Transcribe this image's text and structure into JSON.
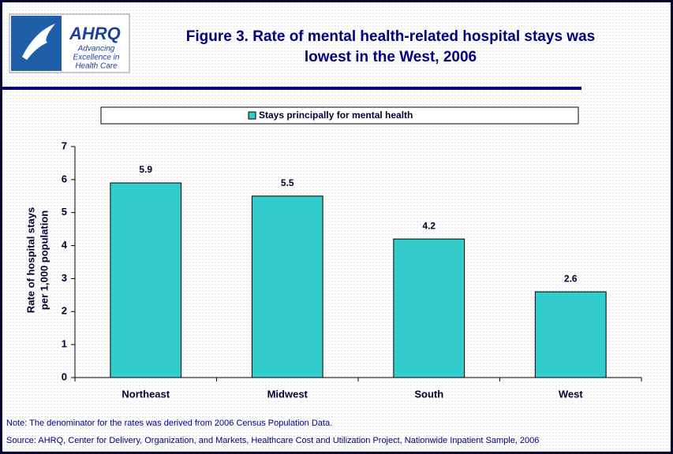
{
  "logo": {
    "name": "AHRQ",
    "lines": [
      "Advancing",
      "Excellence in",
      "Health Care"
    ]
  },
  "chart_data": {
    "type": "bar",
    "title": [
      "Figure 3. Rate of mental health-related hospital stays was",
      "lowest in the West, 2006"
    ],
    "ylabel": [
      "Rate of hospital stays",
      "per 1,000 population"
    ],
    "categories": [
      "Northeast",
      "Midwest",
      "South",
      "West"
    ],
    "series": [
      {
        "name": "Stays principally for mental health",
        "color": "#33cccc",
        "values": [
          5.9,
          5.5,
          4.2,
          2.6
        ]
      }
    ],
    "ylim": [
      0,
      7
    ],
    "yticks": [
      0,
      1,
      2,
      3,
      4,
      5,
      6,
      7
    ],
    "grid": false,
    "legend": "top",
    "data_labels": true
  },
  "notes": [
    "Note: The denominator for the rates was derived from 2006 Census Population Data.",
    "Source: AHRQ, Center for Delivery, Organization, and Markets, Healthcare Cost and Utilization Project, Nationwide Inpatient Sample, 2006"
  ]
}
